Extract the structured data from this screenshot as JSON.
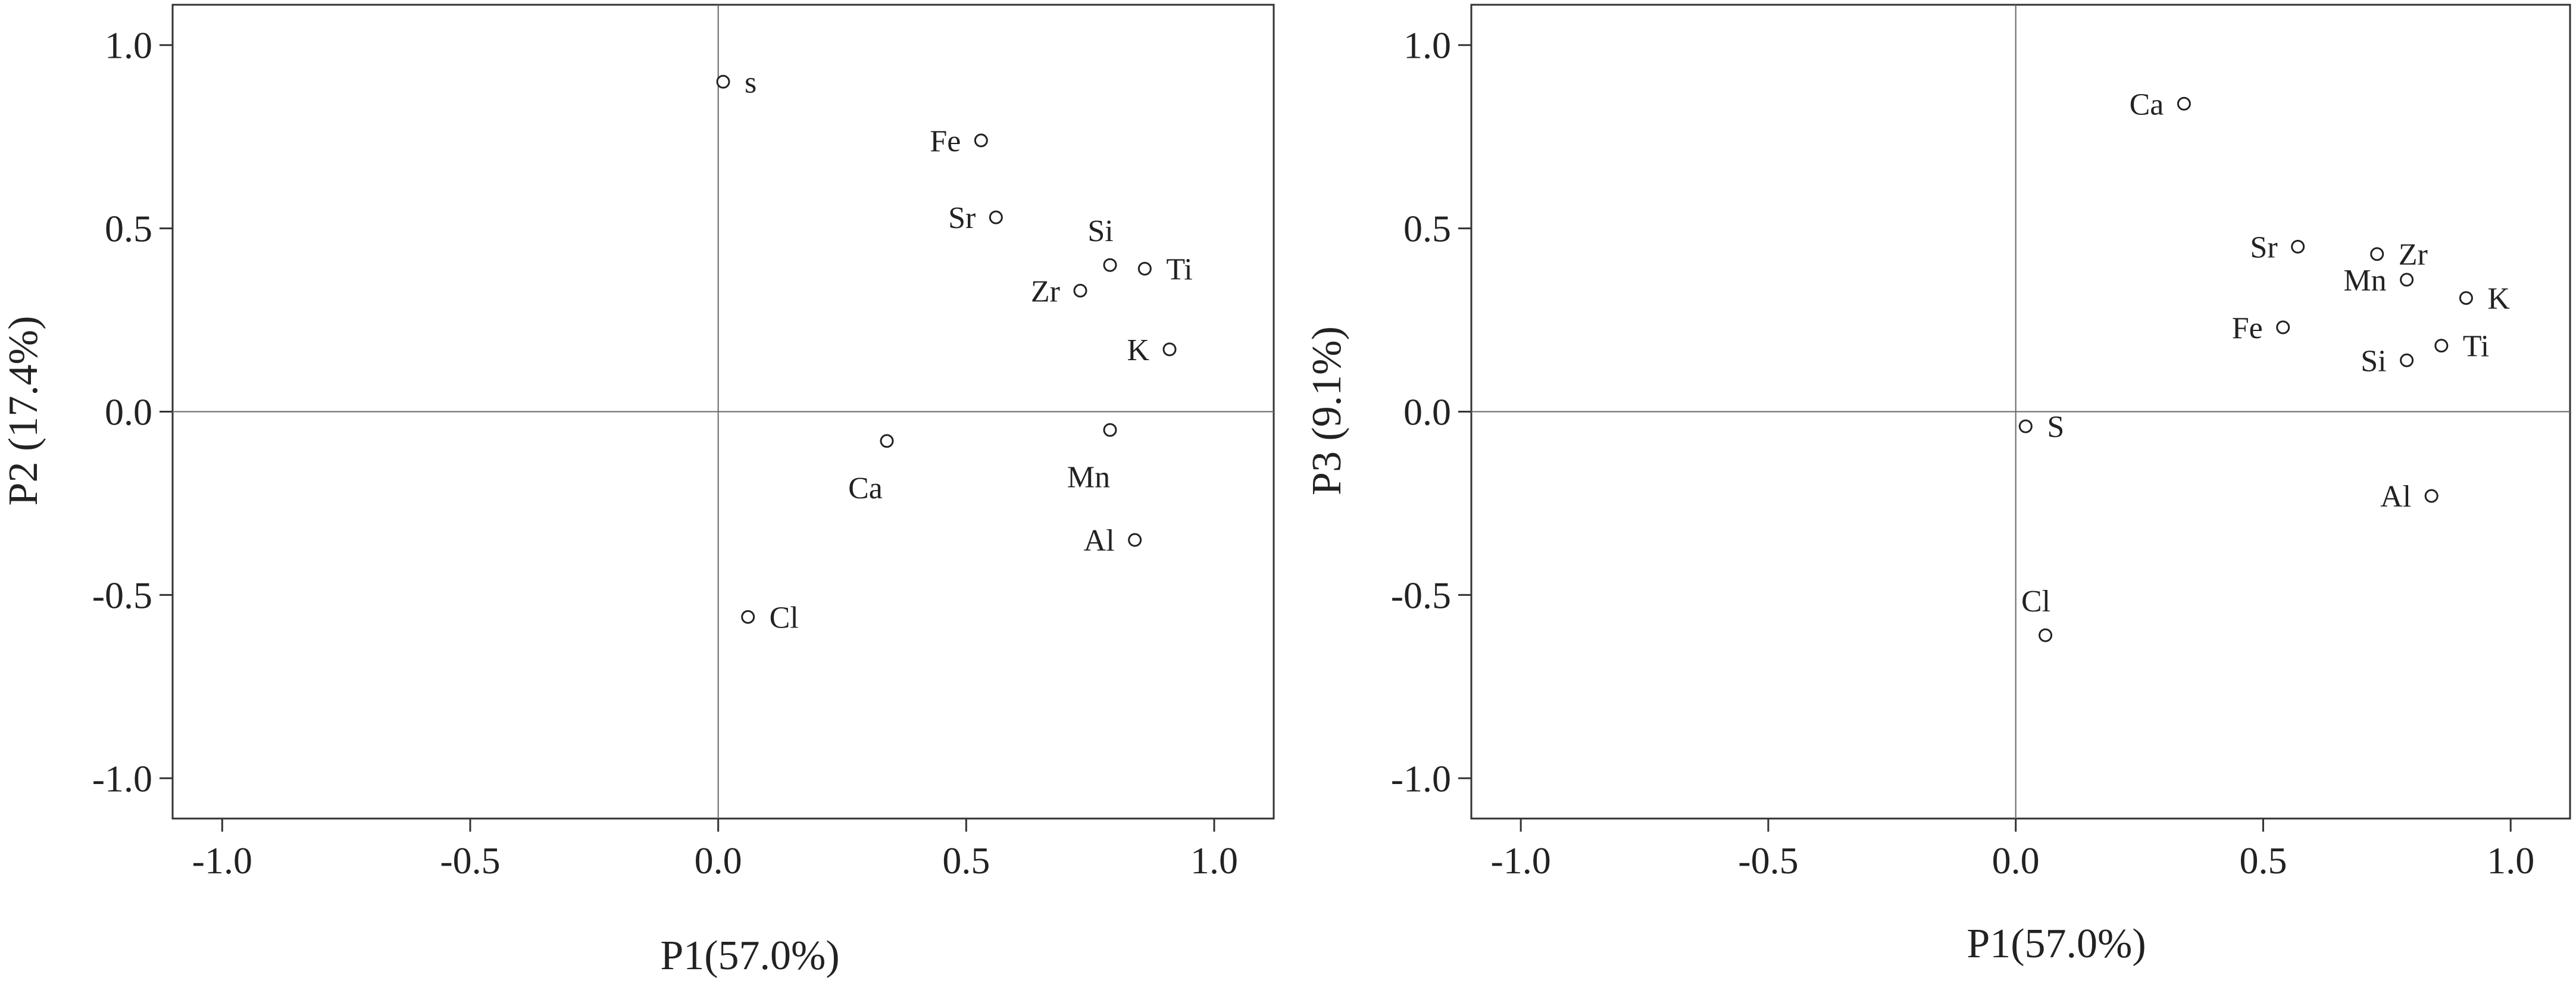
{
  "chart_data": [
    {
      "type": "scatter",
      "xlabel": "P1(57.0%)",
      "ylabel": "P2 (17.4%)",
      "xlim": [
        -1.1,
        1.12
      ],
      "ylim": [
        -1.11,
        1.11
      ],
      "xticks": [
        -1.0,
        -0.5,
        0.0,
        0.5,
        1.0
      ],
      "xtick_labels": [
        "-1.0",
        "-0.5",
        "0.0",
        "0.5",
        "1.0"
      ],
      "yticks": [
        1.0,
        0.5,
        0.0,
        -0.5,
        -1.0
      ],
      "ytick_labels": [
        "1.0",
        "0.5",
        "0.0",
        "-0.5",
        "-1.0"
      ],
      "reference_lines": {
        "x": 0,
        "y": 0
      },
      "points": [
        {
          "label": "s",
          "x": 0.01,
          "y": 0.9,
          "label_side": "right"
        },
        {
          "label": "Fe",
          "x": 0.53,
          "y": 0.74,
          "label_side": "left"
        },
        {
          "label": "Sr",
          "x": 0.56,
          "y": 0.53,
          "label_side": "left"
        },
        {
          "label": "Si",
          "x": 0.79,
          "y": 0.4,
          "label_side": "above"
        },
        {
          "label": "Ti",
          "x": 0.86,
          "y": 0.39,
          "label_side": "right"
        },
        {
          "label": "Zr",
          "x": 0.73,
          "y": 0.33,
          "label_side": "left"
        },
        {
          "label": "K",
          "x": 0.91,
          "y": 0.17,
          "label_side": "left"
        },
        {
          "label": "Ca",
          "x": 0.34,
          "y": -0.08,
          "label_side": "below-left"
        },
        {
          "label": "Mn",
          "x": 0.79,
          "y": -0.05,
          "label_side": "below-left"
        },
        {
          "label": "Al",
          "x": 0.84,
          "y": -0.35,
          "label_side": "left"
        },
        {
          "label": "Cl",
          "x": 0.06,
          "y": -0.56,
          "label_side": "right"
        }
      ]
    },
    {
      "type": "scatter",
      "xlabel": "P1(57.0%)",
      "ylabel": "P3 (9.1%)",
      "xlim": [
        -1.1,
        1.12
      ],
      "ylim": [
        -1.11,
        1.11
      ],
      "xticks": [
        -1.0,
        -0.5,
        0.0,
        0.5,
        1.0
      ],
      "xtick_labels": [
        "-1.0",
        "-0.5",
        "0.0",
        "0.5",
        "1.0"
      ],
      "yticks": [
        1.0,
        0.5,
        0.0,
        -0.5,
        -1.0
      ],
      "ytick_labels": [
        "1.0",
        "0.5",
        "0.0",
        "-0.5",
        "-1.0"
      ],
      "reference_lines": {
        "x": 0,
        "y": 0
      },
      "points": [
        {
          "label": "Ca",
          "x": 0.34,
          "y": 0.84,
          "label_side": "left"
        },
        {
          "label": "Sr",
          "x": 0.57,
          "y": 0.45,
          "label_side": "left"
        },
        {
          "label": "Zr",
          "x": 0.73,
          "y": 0.43,
          "label_side": "right"
        },
        {
          "label": "Mn",
          "x": 0.79,
          "y": 0.36,
          "label_side": "left"
        },
        {
          "label": "K",
          "x": 0.91,
          "y": 0.31,
          "label_side": "right"
        },
        {
          "label": "Fe",
          "x": 0.54,
          "y": 0.23,
          "label_side": "left"
        },
        {
          "label": "Ti",
          "x": 0.86,
          "y": 0.18,
          "label_side": "right"
        },
        {
          "label": "Si",
          "x": 0.79,
          "y": 0.14,
          "label_side": "left"
        },
        {
          "label": "S",
          "x": 0.02,
          "y": -0.04,
          "label_side": "right"
        },
        {
          "label": "Al",
          "x": 0.84,
          "y": -0.23,
          "label_side": "left"
        },
        {
          "label": "Cl",
          "x": 0.06,
          "y": -0.61,
          "label_side": "above"
        }
      ]
    }
  ]
}
